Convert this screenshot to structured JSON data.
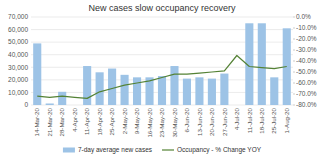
{
  "chart_data": {
    "type": "bar",
    "title": "New cases slow occupancy recovery",
    "categories": [
      "14-Mar-20",
      "21-Mar-20",
      "28-Mar-20",
      "4-Apr-20",
      "11-Apr-20",
      "18-Apr-20",
      "25-Apr-20",
      "2-May-20",
      "9-May-20",
      "16-May-20",
      "23-May-20",
      "30-May-20",
      "6-Jun-20",
      "13-Jun-20",
      "20-Jun-20",
      "27-Jun-20",
      "4-Jul-20",
      "11-Jul-20",
      "18-Jul-20",
      "25-Jul-20",
      "1-Aug-20"
    ],
    "series": [
      {
        "name": "7-day average new cases",
        "type": "bar",
        "color": "#9dc3e6",
        "values": [
          49000,
          1200,
          10500,
          0,
          31000,
          26000,
          29000,
          24000,
          22000,
          22000,
          23000,
          31000,
          21000,
          22000,
          21000,
          25000,
          0,
          65000,
          65000,
          22000,
          61000
        ]
      },
      {
        "name": "Occupancy - % Change YOY",
        "type": "line",
        "axis": "y2",
        "color": "#548235",
        "values": [
          -72,
          -73,
          -72,
          -73,
          -74,
          -68,
          -65,
          -62,
          -60,
          -58,
          -55,
          -52,
          -52,
          -51,
          -50,
          -49,
          -35,
          -45,
          -46,
          -47,
          -45
        ]
      }
    ],
    "ylim": [
      0,
      70000
    ],
    "yticks": [
      0,
      {
        "value": 10000,
        "label": "10,000"
      },
      {
        "value": 20000,
        "label": "20,000"
      },
      {
        "value": 30000,
        "label": "30,000"
      },
      {
        "value": 40000,
        "label": "40,000"
      },
      {
        "value": 50000,
        "label": "50,000"
      },
      {
        "value": 60000,
        "label": "60,000"
      },
      {
        "value": 70000,
        "label": "70,000"
      }
    ],
    "y2lim": [
      -80,
      0
    ],
    "y2ticks": [
      {
        "value": 0,
        "label": "0.0%"
      },
      {
        "value": -10,
        "label": "-10.0%"
      },
      {
        "value": -20,
        "label": "-20.0%"
      },
      {
        "value": -30,
        "label": "-30.0%"
      },
      {
        "value": -40,
        "label": "-40.0%"
      },
      {
        "value": -50,
        "label": "-50.0%"
      },
      {
        "value": -60,
        "label": "-60.0%"
      },
      {
        "value": -70,
        "label": "-70.0%"
      },
      {
        "value": -80,
        "label": "-80.0%"
      }
    ],
    "grid": true,
    "legend": "bottom"
  }
}
